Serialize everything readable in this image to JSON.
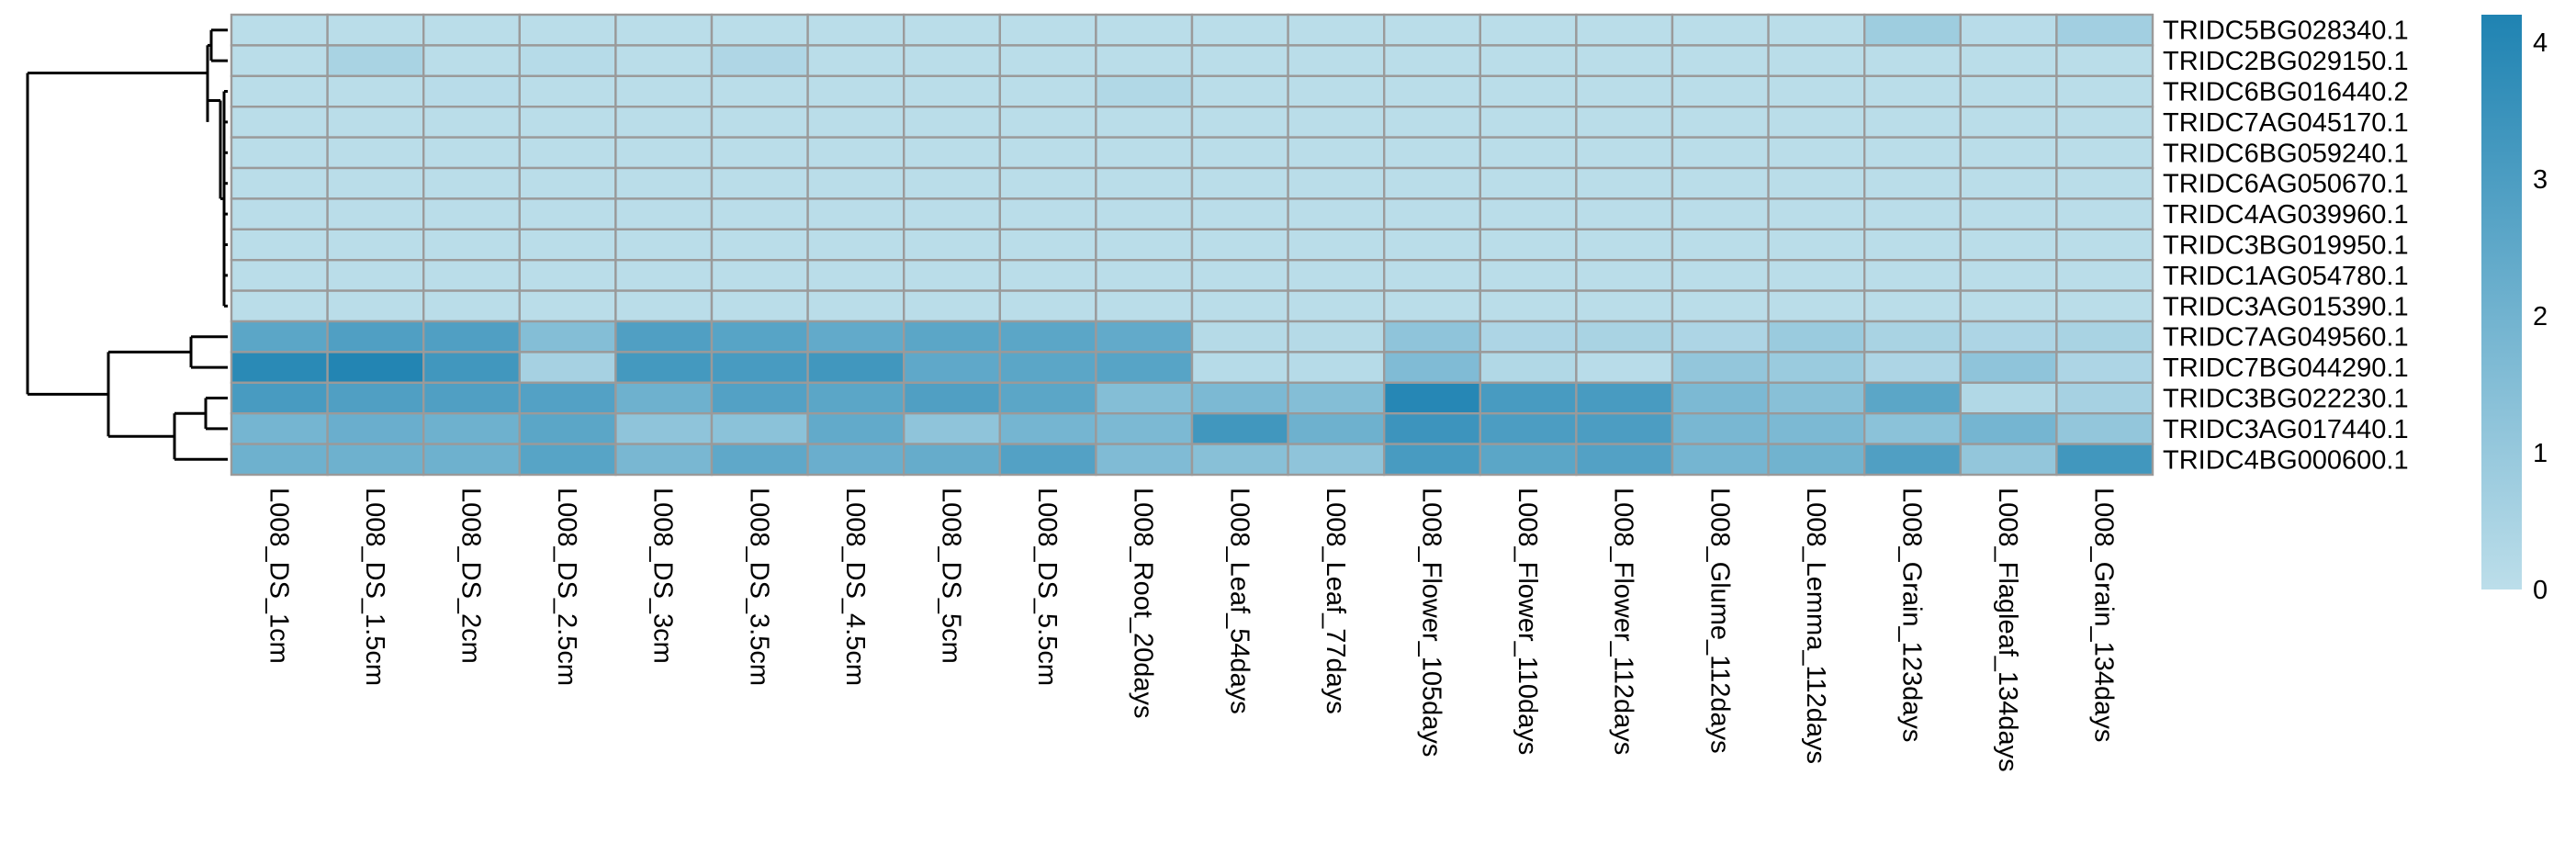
{
  "chart_data": {
    "type": "heatmap",
    "title": "",
    "xlabel": "",
    "ylabel": "",
    "rows": [
      "TRIDC5BG028340.1",
      "TRIDC2BG029150.1",
      "TRIDC6BG016440.2",
      "TRIDC7AG045170.1",
      "TRIDC6BG059240.1",
      "TRIDC6AG050670.1",
      "TRIDC4AG039960.1",
      "TRIDC3BG019950.1",
      "TRIDC1AG054780.1",
      "TRIDC3AG015390.1",
      "TRIDC7AG049560.1",
      "TRIDC7BG044290.1",
      "TRIDC3BG022230.1",
      "TRIDC3AG017440.1",
      "TRIDC4BG000600.1"
    ],
    "columns": [
      "L008_DS_1cm",
      "L008_DS_1.5cm",
      "L008_DS_2cm",
      "L008_DS_2.5cm",
      "L008_DS_3cm",
      "L008_DS_3.5cm",
      "L008_DS_4.5cm",
      "L008_DS_5cm",
      "L008_DS_5.5cm",
      "L008_Root_20days",
      "L008_Leaf_54days",
      "L008_Leaf_77days",
      "L008_Flower_105days",
      "L008_Flower_110days",
      "L008_Flower_112days",
      "L008_Glume_112days",
      "L008_Lemma_112days",
      "L008_Grain_123days",
      "L008_Flagleaf_134days",
      "L008_Grain_134days"
    ],
    "values": [
      [
        0.05,
        0.05,
        0.05,
        0.05,
        0.05,
        0.05,
        0.05,
        0.05,
        0.05,
        0.05,
        0.05,
        0.05,
        0.05,
        0.05,
        0.05,
        0.05,
        0.05,
        0.8,
        0.1,
        0.7
      ],
      [
        0.05,
        0.5,
        0.05,
        0.15,
        0.05,
        0.35,
        0.05,
        0.05,
        0.05,
        0.05,
        0.05,
        0.05,
        0.05,
        0.05,
        0.05,
        0.05,
        0.05,
        0.05,
        0.05,
        0.05
      ],
      [
        0.05,
        0.05,
        0.1,
        0.05,
        0.05,
        0.05,
        0.05,
        0.05,
        0.05,
        0.3,
        0.05,
        0.05,
        0.05,
        0.05,
        0.05,
        0.05,
        0.05,
        0.05,
        0.05,
        0.05
      ],
      [
        0.05,
        0.05,
        0.05,
        0.05,
        0.05,
        0.05,
        0.05,
        0.05,
        0.05,
        0.05,
        0.05,
        0.05,
        0.05,
        0.05,
        0.05,
        0.05,
        0.05,
        0.05,
        0.05,
        0.05
      ],
      [
        0.05,
        0.05,
        0.05,
        0.05,
        0.05,
        0.05,
        0.05,
        0.05,
        0.05,
        0.05,
        0.05,
        0.05,
        0.05,
        0.05,
        0.05,
        0.05,
        0.05,
        0.05,
        0.05,
        0.05
      ],
      [
        0.05,
        0.05,
        0.05,
        0.05,
        0.05,
        0.05,
        0.05,
        0.05,
        0.05,
        0.05,
        0.05,
        0.05,
        0.05,
        0.05,
        0.05,
        0.05,
        0.05,
        0.05,
        0.05,
        0.05
      ],
      [
        0.05,
        0.05,
        0.05,
        0.05,
        0.05,
        0.05,
        0.05,
        0.05,
        0.05,
        0.05,
        0.05,
        0.05,
        0.05,
        0.05,
        0.05,
        0.05,
        0.05,
        0.05,
        0.05,
        0.05
      ],
      [
        0.05,
        0.05,
        0.05,
        0.05,
        0.05,
        0.05,
        0.05,
        0.05,
        0.05,
        0.05,
        0.05,
        0.05,
        0.05,
        0.05,
        0.05,
        0.05,
        0.05,
        0.05,
        0.05,
        0.05
      ],
      [
        0.05,
        0.05,
        0.05,
        0.05,
        0.05,
        0.05,
        0.05,
        0.05,
        0.05,
        0.05,
        0.05,
        0.05,
        0.05,
        0.05,
        0.05,
        0.05,
        0.05,
        0.05,
        0.05,
        0.05
      ],
      [
        0.05,
        0.05,
        0.05,
        0.05,
        0.05,
        0.05,
        0.05,
        0.05,
        0.05,
        0.05,
        0.05,
        0.05,
        0.05,
        0.05,
        0.05,
        0.05,
        0.05,
        0.05,
        0.05,
        0.05
      ],
      [
        2.6,
        2.9,
        2.9,
        1.5,
        2.9,
        2.7,
        2.4,
        2.6,
        2.6,
        2.4,
        0.2,
        0.2,
        1.2,
        0.4,
        0.5,
        0.4,
        0.9,
        0.5,
        0.4,
        0.5
      ],
      [
        3.9,
        4.1,
        3.3,
        0.6,
        3.2,
        3.1,
        3.3,
        2.5,
        2.6,
        2.7,
        0.15,
        0.15,
        1.6,
        0.3,
        0.1,
        1.1,
        0.9,
        0.4,
        1.2,
        0.4
      ],
      [
        3.1,
        2.9,
        2.9,
        2.8,
        2.1,
        2.8,
        2.6,
        2.9,
        2.6,
        1.5,
        1.7,
        1.5,
        4.0,
        3.1,
        3.1,
        1.7,
        1.4,
        2.6,
        0.3,
        0.6
      ],
      [
        1.9,
        2.2,
        2.1,
        2.6,
        1.2,
        1.3,
        2.4,
        1.2,
        1.9,
        1.7,
        3.3,
        2.1,
        3.4,
        3.0,
        3.0,
        1.8,
        1.7,
        1.3,
        1.9,
        1.1
      ],
      [
        2.1,
        2.1,
        2.1,
        2.7,
        1.8,
        2.5,
        2.2,
        2.3,
        2.8,
        1.6,
        1.4,
        1.2,
        3.1,
        2.6,
        2.8,
        1.9,
        2.0,
        2.9,
        1.1,
        3.3
      ]
    ],
    "colorscale": {
      "min": 0,
      "max": 4.2,
      "low": "#bcdeea",
      "high": "#1f83b2"
    },
    "legend": {
      "ticks": [
        "0",
        "1",
        "2",
        "3",
        "4"
      ],
      "tick_values": [
        0,
        1,
        2,
        3,
        4
      ],
      "placement": "right"
    },
    "grid": true,
    "row_dendrogram": true,
    "cell_border_color": "#9a9a9a"
  }
}
